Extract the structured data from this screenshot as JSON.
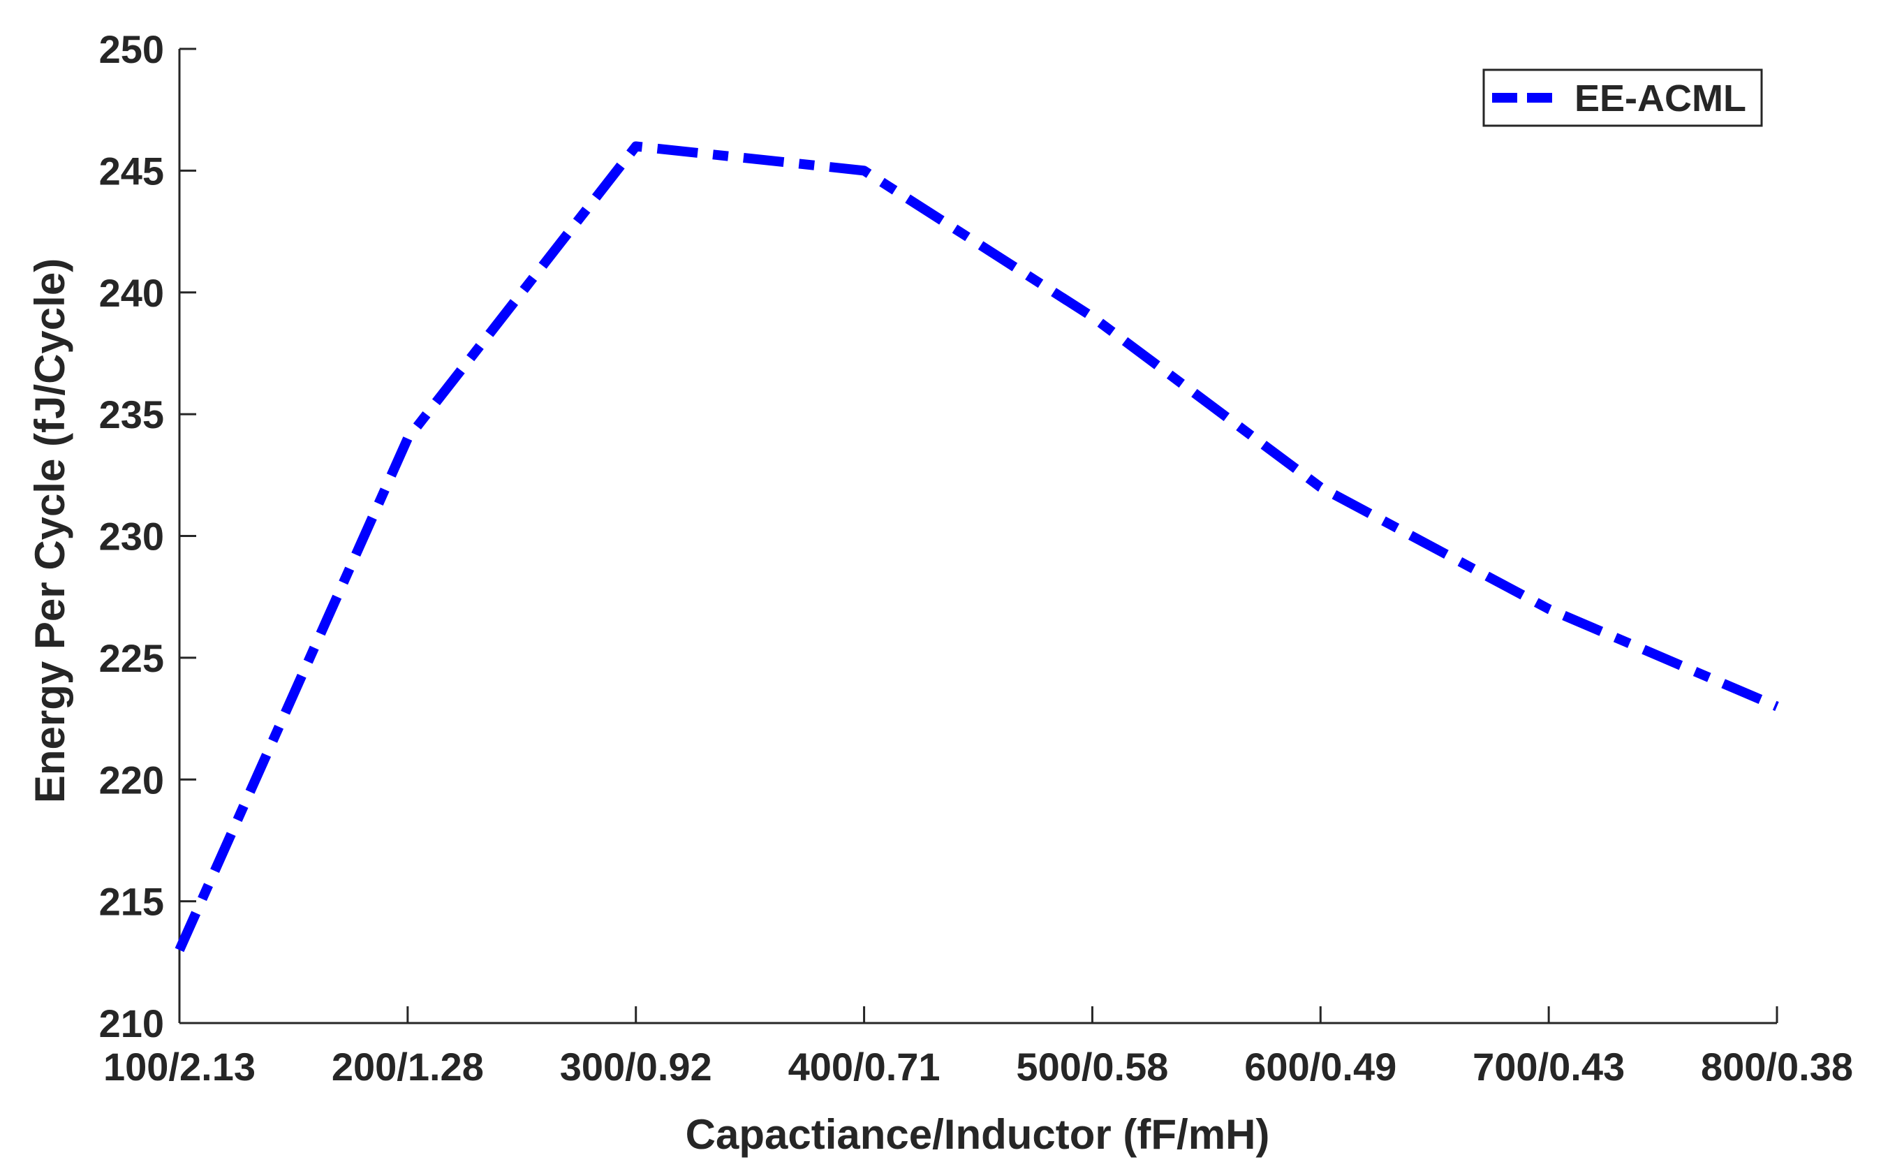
{
  "chart_data": {
    "type": "line",
    "title": "",
    "xlabel": "Capactiance/Inductor (fF/mH)",
    "ylabel": "Energy Per Cycle (fJ/Cycle)",
    "categories": [
      "100/2.13",
      "200/1.28",
      "300/0.92",
      "400/0.71",
      "500/0.58",
      "600/0.49",
      "700/0.43",
      "800/0.38"
    ],
    "ylim": [
      210,
      250
    ],
    "yticks": [
      210,
      215,
      220,
      225,
      230,
      235,
      240,
      245,
      250
    ],
    "grid": false,
    "legend_position": "top-right",
    "series": [
      {
        "name": "EE-ACML",
        "values": [
          213,
          234,
          246,
          245,
          239,
          232,
          227,
          223
        ],
        "color": "#0000ff",
        "line_style": "dash-dot"
      }
    ]
  }
}
